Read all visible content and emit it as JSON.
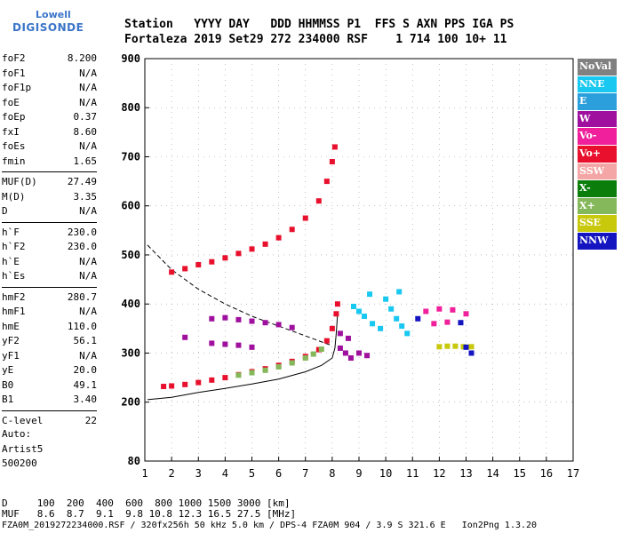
{
  "logo": {
    "line1": "Lowell",
    "line2": "DIGISONDE"
  },
  "header": {
    "row1": "Station   YYYY DAY   DDD HHMMSS P1  FFS S AXN PPS IGA PS",
    "row2": "Fortaleza 2019 Set29 272 234000 RSF    1 714 100 10+ 11"
  },
  "params": [
    {
      "group": [
        {
          "name": "foF2",
          "value": "8.200"
        },
        {
          "name": "foF1",
          "value": "N/A"
        },
        {
          "name": "foF1p",
          "value": "N/A"
        },
        {
          "name": "foE",
          "value": "N/A"
        },
        {
          "name": "foEp",
          "value": "0.37"
        },
        {
          "name": "fxI",
          "value": "8.60"
        },
        {
          "name": "foEs",
          "value": "N/A"
        },
        {
          "name": "fmin",
          "value": "1.65"
        }
      ]
    },
    {
      "group": [
        {
          "name": "MUF(D)",
          "value": "27.49"
        },
        {
          "name": "M(D)",
          "value": "3.35"
        },
        {
          "name": "D",
          "value": "N/A"
        }
      ]
    },
    {
      "group": [
        {
          "name": "h`F",
          "value": "230.0"
        },
        {
          "name": "h`F2",
          "value": "230.0"
        },
        {
          "name": "h`E",
          "value": "N/A"
        },
        {
          "name": "h`Es",
          "value": "N/A"
        }
      ]
    },
    {
      "group": [
        {
          "name": "hmF2",
          "value": "280.7"
        },
        {
          "name": "hmF1",
          "value": "N/A"
        },
        {
          "name": "hmE",
          "value": "110.0"
        },
        {
          "name": "yF2",
          "value": "56.1"
        },
        {
          "name": "yF1",
          "value": "N/A"
        },
        {
          "name": "yE",
          "value": "20.0"
        },
        {
          "name": "B0",
          "value": "49.1"
        },
        {
          "name": "B1",
          "value": "3.40"
        }
      ]
    },
    {
      "group": [
        {
          "name": "C-level",
          "value": "22"
        }
      ]
    }
  ],
  "auto": {
    "line1": "Auto:",
    "line2": "Artist5",
    "line3": "500200"
  },
  "legend": [
    {
      "label": "NoVal",
      "color": "#808080"
    },
    {
      "label": "NNE",
      "color": "#19c8f0"
    },
    {
      "label": "E",
      "color": "#2b9fdc"
    },
    {
      "label": "W",
      "color": "#a0109e"
    },
    {
      "label": "Vo-",
      "color": "#f0209c"
    },
    {
      "label": "Vo+",
      "color": "#e8102c"
    },
    {
      "label": "SSW",
      "color": "#f4a6a6"
    },
    {
      "label": "X-",
      "color": "#0b7d0b"
    },
    {
      "label": "X+",
      "color": "#84b85a"
    },
    {
      "label": "SSE",
      "color": "#c8c80c"
    },
    {
      "label": "NNW",
      "color": "#1414c0"
    }
  ],
  "footer": {
    "line_d": "D     100  200  400  600  800 1000 1500 3000 [km]",
    "line_muf": "MUF   8.6  8.7  9.1  9.8 10.8 12.3 16.5 27.5 [MHz]",
    "line_info": "FZA0M_2019272234000.RSF / 320fx256h 50 kHz 5.0 km / DPS-4 FZA0M 904 / 3.9 S 321.6 E   Ion2Png 1.3.20"
  },
  "chart_data": {
    "type": "scatter",
    "xlim": [
      1,
      17
    ],
    "ylim": [
      80,
      900
    ],
    "xticks": [
      "1",
      "2",
      "3",
      "4",
      "5",
      "6",
      "7",
      "8",
      "9",
      "10",
      "11",
      "12",
      "13",
      "14",
      "15",
      "16",
      "17"
    ],
    "yticks": [
      {
        "value": 80,
        "label": "80"
      },
      {
        "value": 200,
        "label": "200"
      },
      {
        "value": 300,
        "label": "300"
      },
      {
        "value": 400,
        "label": "400"
      },
      {
        "value": 500,
        "label": "500"
      },
      {
        "value": 600,
        "label": "600"
      },
      {
        "value": 700,
        "label": "700"
      },
      {
        "value": 800,
        "label": "800"
      },
      {
        "value": 900,
        "label": "900"
      }
    ],
    "series": [
      {
        "name": "Vo+",
        "color": "#e8102c",
        "points": [
          [
            1.7,
            232
          ],
          [
            2.0,
            233
          ],
          [
            2.5,
            236
          ],
          [
            3.0,
            240
          ],
          [
            3.5,
            245
          ],
          [
            4.0,
            250
          ],
          [
            4.5,
            256
          ],
          [
            5.0,
            262
          ],
          [
            5.5,
            268
          ],
          [
            6.0,
            275
          ],
          [
            6.5,
            283
          ],
          [
            7.0,
            293
          ],
          [
            7.5,
            307
          ],
          [
            7.8,
            325
          ],
          [
            8.0,
            350
          ],
          [
            8.15,
            380
          ],
          [
            8.2,
            400
          ]
        ]
      },
      {
        "name": "X+",
        "color": "#84b85a",
        "points": [
          [
            4.5,
            255
          ],
          [
            5.0,
            260
          ],
          [
            5.5,
            265
          ],
          [
            6.0,
            272
          ],
          [
            6.5,
            280
          ],
          [
            7.0,
            290
          ],
          [
            7.3,
            298
          ],
          [
            7.6,
            308
          ]
        ]
      },
      {
        "name": "Vo+ 2F",
        "color": "#e8102c",
        "points": [
          [
            2.0,
            465
          ],
          [
            2.5,
            472
          ],
          [
            3.0,
            480
          ],
          [
            3.5,
            486
          ],
          [
            4.0,
            494
          ],
          [
            4.5,
            503
          ],
          [
            5.0,
            512
          ],
          [
            5.5,
            522
          ],
          [
            6.0,
            535
          ],
          [
            6.5,
            552
          ],
          [
            7.0,
            575
          ],
          [
            7.5,
            610
          ],
          [
            7.8,
            650
          ],
          [
            8.0,
            690
          ],
          [
            8.1,
            720
          ]
        ]
      },
      {
        "name": "W",
        "color": "#a0109e",
        "points": [
          [
            3.5,
            370
          ],
          [
            4.0,
            372
          ],
          [
            4.5,
            368
          ],
          [
            5.0,
            365
          ],
          [
            5.5,
            362
          ],
          [
            6.0,
            358
          ],
          [
            6.5,
            352
          ],
          [
            3.5,
            320
          ],
          [
            4.0,
            318
          ],
          [
            4.5,
            316
          ],
          [
            5.0,
            312
          ],
          [
            2.5,
            332
          ],
          [
            8.3,
            310
          ],
          [
            8.5,
            300
          ],
          [
            8.7,
            290
          ],
          [
            9.0,
            300
          ],
          [
            9.3,
            295
          ],
          [
            8.3,
            340
          ],
          [
            8.6,
            330
          ]
        ]
      },
      {
        "name": "NNE",
        "color": "#19c8f0",
        "points": [
          [
            8.8,
            395
          ],
          [
            9.0,
            385
          ],
          [
            9.2,
            375
          ],
          [
            9.5,
            360
          ],
          [
            9.8,
            350
          ],
          [
            10.0,
            410
          ],
          [
            10.2,
            390
          ],
          [
            10.4,
            370
          ],
          [
            10.6,
            355
          ],
          [
            10.8,
            340
          ],
          [
            9.4,
            420
          ],
          [
            10.5,
            425
          ]
        ]
      },
      {
        "name": "SSE",
        "color": "#c8c80c",
        "points": [
          [
            12.0,
            313
          ],
          [
            12.3,
            314
          ],
          [
            12.6,
            314
          ],
          [
            12.9,
            313
          ],
          [
            13.2,
            313
          ]
        ]
      },
      {
        "name": "NNW",
        "color": "#1414c0",
        "points": [
          [
            12.8,
            362
          ],
          [
            13.2,
            300
          ],
          [
            11.2,
            370
          ],
          [
            13.0,
            312
          ]
        ]
      },
      {
        "name": "Vo-",
        "color": "#f0209c",
        "points": [
          [
            11.5,
            385
          ],
          [
            12.0,
            390
          ],
          [
            12.5,
            388
          ],
          [
            13.0,
            380
          ],
          [
            11.8,
            360
          ],
          [
            12.3,
            363
          ]
        ]
      }
    ],
    "profile": {
      "name": "profile",
      "color": "#000000",
      "points": [
        [
          1.1,
          205
        ],
        [
          2.0,
          210
        ],
        [
          3.0,
          220
        ],
        [
          4.0,
          228
        ],
        [
          5.0,
          237
        ],
        [
          6.0,
          247
        ],
        [
          7.0,
          262
        ],
        [
          7.6,
          275
        ],
        [
          8.0,
          290
        ],
        [
          8.1,
          310
        ],
        [
          8.15,
          340
        ],
        [
          8.2,
          380
        ]
      ]
    },
    "muf_curve": {
      "name": "muf",
      "color": "#000000",
      "points": [
        [
          1.1,
          520
        ],
        [
          2.0,
          470
        ],
        [
          3.0,
          430
        ],
        [
          4.0,
          400
        ],
        [
          5.0,
          375
        ],
        [
          6.0,
          355
        ],
        [
          7.0,
          335
        ],
        [
          7.5,
          325
        ],
        [
          8.0,
          315
        ]
      ]
    }
  }
}
